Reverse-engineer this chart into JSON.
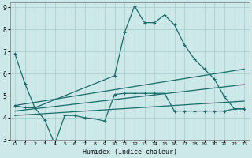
{
  "xlabel": "Humidex (Indice chaleur)",
  "bg_color": "#cce8e8",
  "grid_color": "#aacece",
  "line_color": "#1a6b6b",
  "xlim": [
    -0.5,
    23.5
  ],
  "ylim": [
    3,
    9.2
  ],
  "yticks": [
    3,
    4,
    5,
    6,
    7,
    8,
    9
  ],
  "xticks": [
    0,
    1,
    2,
    3,
    4,
    5,
    6,
    7,
    8,
    9,
    10,
    11,
    12,
    13,
    14,
    15,
    16,
    17,
    18,
    19,
    20,
    21,
    22,
    23
  ],
  "series1_x": [
    0,
    1,
    2,
    10,
    11,
    12,
    13,
    14,
    15,
    16,
    17,
    18,
    19,
    20,
    21,
    22,
    23
  ],
  "series1_y": [
    6.9,
    5.55,
    4.45,
    5.9,
    7.85,
    9.05,
    8.3,
    8.3,
    8.65,
    8.2,
    7.3,
    6.65,
    6.2,
    5.75,
    4.95,
    4.4,
    4.4
  ],
  "series2_x": [
    0,
    1,
    2,
    3,
    4,
    5,
    6,
    7,
    8,
    9,
    10,
    11,
    12,
    13,
    14,
    15,
    16,
    17,
    18,
    19,
    20,
    21,
    22,
    23
  ],
  "series2_y": [
    4.55,
    4.45,
    4.45,
    3.9,
    2.8,
    4.1,
    4.1,
    4.0,
    3.95,
    3.85,
    5.05,
    5.1,
    5.1,
    5.1,
    5.1,
    5.1,
    4.3,
    4.3,
    4.3,
    4.3,
    4.3,
    4.3,
    4.4,
    4.4
  ],
  "series3_x": [
    0,
    23
  ],
  "series3_y": [
    4.55,
    6.2
  ],
  "series4_x": [
    0,
    23
  ],
  "series4_y": [
    4.3,
    5.5
  ],
  "series5_x": [
    0,
    23
  ],
  "series5_y": [
    4.1,
    4.75
  ]
}
